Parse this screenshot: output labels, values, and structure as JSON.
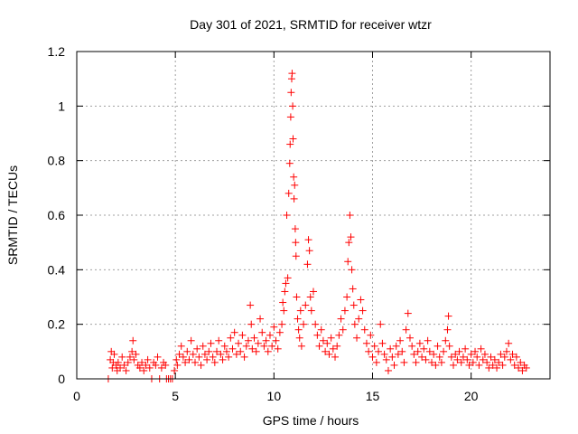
{
  "chart_data": {
    "type": "scatter",
    "title": "Day 301 of 2021, SRMTID for receiver wtzr",
    "xlabel": "GPS time / hours",
    "ylabel": "SRMTID / TECUs",
    "xlim": [
      0,
      24
    ],
    "ylim": [
      0,
      1.2
    ],
    "x_ticks": [
      0,
      5,
      10,
      15,
      20
    ],
    "x_tick_labels": [
      "0",
      "5",
      "10",
      "15",
      "20"
    ],
    "y_ticks": [
      0,
      0.2,
      0.4,
      0.6,
      0.8,
      1.0,
      1.2
    ],
    "y_tick_labels": [
      "0",
      "0.2",
      "0.4",
      "0.6",
      "0.8",
      "1",
      "1.2"
    ],
    "grid": true,
    "marker": "+",
    "marker_color": "#ff0000",
    "series": [
      {
        "name": "SRMTID",
        "points": [
          [
            1.6,
            0.0
          ],
          [
            1.7,
            0.07
          ],
          [
            1.75,
            0.1
          ],
          [
            1.8,
            0.04
          ],
          [
            1.85,
            0.06
          ],
          [
            1.9,
            0.09
          ],
          [
            2.0,
            0.05
          ],
          [
            2.05,
            0.03
          ],
          [
            2.1,
            0.06
          ],
          [
            2.2,
            0.04
          ],
          [
            2.3,
            0.08
          ],
          [
            2.4,
            0.05
          ],
          [
            2.5,
            0.03
          ],
          [
            2.6,
            0.06
          ],
          [
            2.7,
            0.08
          ],
          [
            2.8,
            0.1
          ],
          [
            2.85,
            0.14
          ],
          [
            2.9,
            0.07
          ],
          [
            3.0,
            0.09
          ],
          [
            3.1,
            0.05
          ],
          [
            3.2,
            0.04
          ],
          [
            3.3,
            0.06
          ],
          [
            3.4,
            0.03
          ],
          [
            3.5,
            0.05
          ],
          [
            3.6,
            0.07
          ],
          [
            3.7,
            0.04
          ],
          [
            3.8,
            0.0
          ],
          [
            3.9,
            0.06
          ],
          [
            4.0,
            0.05
          ],
          [
            4.1,
            0.08
          ],
          [
            4.2,
            0.0
          ],
          [
            4.3,
            0.04
          ],
          [
            4.4,
            0.06
          ],
          [
            4.5,
            0.05
          ],
          [
            4.55,
            0.0
          ],
          [
            4.65,
            0.0
          ],
          [
            4.75,
            0.0
          ],
          [
            4.85,
            0.0
          ],
          [
            4.95,
            0.03
          ],
          [
            5.05,
            0.07
          ],
          [
            5.1,
            0.05
          ],
          [
            5.2,
            0.09
          ],
          [
            5.3,
            0.12
          ],
          [
            5.4,
            0.08
          ],
          [
            5.5,
            0.06
          ],
          [
            5.6,
            0.1
          ],
          [
            5.7,
            0.07
          ],
          [
            5.8,
            0.14
          ],
          [
            5.9,
            0.09
          ],
          [
            6.0,
            0.06
          ],
          [
            6.1,
            0.11
          ],
          [
            6.2,
            0.08
          ],
          [
            6.3,
            0.05
          ],
          [
            6.4,
            0.12
          ],
          [
            6.5,
            0.09
          ],
          [
            6.6,
            0.07
          ],
          [
            6.7,
            0.1
          ],
          [
            6.8,
            0.13
          ],
          [
            6.9,
            0.08
          ],
          [
            7.0,
            0.06
          ],
          [
            7.1,
            0.1
          ],
          [
            7.2,
            0.14
          ],
          [
            7.3,
            0.09
          ],
          [
            7.4,
            0.07
          ],
          [
            7.5,
            0.12
          ],
          [
            7.6,
            0.1
          ],
          [
            7.7,
            0.08
          ],
          [
            7.8,
            0.15
          ],
          [
            7.9,
            0.11
          ],
          [
            8.0,
            0.17
          ],
          [
            8.1,
            0.09
          ],
          [
            8.2,
            0.13
          ],
          [
            8.3,
            0.1
          ],
          [
            8.4,
            0.16
          ],
          [
            8.5,
            0.08
          ],
          [
            8.6,
            0.12
          ],
          [
            8.7,
            0.14
          ],
          [
            8.8,
            0.27
          ],
          [
            8.85,
            0.2
          ],
          [
            8.9,
            0.11
          ],
          [
            9.0,
            0.15
          ],
          [
            9.1,
            0.1
          ],
          [
            9.2,
            0.13
          ],
          [
            9.3,
            0.22
          ],
          [
            9.4,
            0.17
          ],
          [
            9.5,
            0.12
          ],
          [
            9.6,
            0.14
          ],
          [
            9.7,
            0.1
          ],
          [
            9.8,
            0.16
          ],
          [
            9.9,
            0.12
          ],
          [
            10.0,
            0.19
          ],
          [
            10.1,
            0.14
          ],
          [
            10.2,
            0.11
          ],
          [
            10.3,
            0.17
          ],
          [
            10.4,
            0.2
          ],
          [
            10.45,
            0.28
          ],
          [
            10.5,
            0.25
          ],
          [
            10.55,
            0.32
          ],
          [
            10.6,
            0.35
          ],
          [
            10.65,
            0.6
          ],
          [
            10.7,
            0.37
          ],
          [
            10.75,
            0.68
          ],
          [
            10.8,
            0.79
          ],
          [
            10.82,
            0.86
          ],
          [
            10.85,
            0.96
          ],
          [
            10.87,
            1.05
          ],
          [
            10.9,
            1.1
          ],
          [
            10.92,
            1.12
          ],
          [
            10.95,
            1.0
          ],
          [
            10.97,
            0.88
          ],
          [
            11.0,
            0.74
          ],
          [
            11.02,
            0.66
          ],
          [
            11.05,
            0.71
          ],
          [
            11.08,
            0.55
          ],
          [
            11.1,
            0.5
          ],
          [
            11.12,
            0.45
          ],
          [
            11.15,
            0.3
          ],
          [
            11.2,
            0.22
          ],
          [
            11.25,
            0.18
          ],
          [
            11.3,
            0.15
          ],
          [
            11.35,
            0.25
          ],
          [
            11.4,
            0.12
          ],
          [
            11.5,
            0.2
          ],
          [
            11.6,
            0.27
          ],
          [
            11.7,
            0.42
          ],
          [
            11.75,
            0.51
          ],
          [
            11.8,
            0.47
          ],
          [
            11.85,
            0.3
          ],
          [
            11.9,
            0.25
          ],
          [
            12.0,
            0.32
          ],
          [
            12.1,
            0.2
          ],
          [
            12.2,
            0.16
          ],
          [
            12.3,
            0.12
          ],
          [
            12.4,
            0.18
          ],
          [
            12.5,
            0.14
          ],
          [
            12.6,
            0.1
          ],
          [
            12.7,
            0.13
          ],
          [
            12.8,
            0.09
          ],
          [
            12.9,
            0.15
          ],
          [
            13.0,
            0.11
          ],
          [
            13.1,
            0.08
          ],
          [
            13.2,
            0.12
          ],
          [
            13.3,
            0.16
          ],
          [
            13.4,
            0.22
          ],
          [
            13.5,
            0.18
          ],
          [
            13.6,
            0.25
          ],
          [
            13.7,
            0.3
          ],
          [
            13.75,
            0.43
          ],
          [
            13.8,
            0.5
          ],
          [
            13.85,
            0.6
          ],
          [
            13.9,
            0.52
          ],
          [
            13.95,
            0.4
          ],
          [
            14.0,
            0.33
          ],
          [
            14.05,
            0.27
          ],
          [
            14.1,
            0.2
          ],
          [
            14.2,
            0.15
          ],
          [
            14.3,
            0.22
          ],
          [
            14.4,
            0.29
          ],
          [
            14.5,
            0.25
          ],
          [
            14.6,
            0.18
          ],
          [
            14.7,
            0.13
          ],
          [
            14.8,
            0.1
          ],
          [
            14.9,
            0.16
          ],
          [
            15.0,
            0.08
          ],
          [
            15.1,
            0.12
          ],
          [
            15.2,
            0.06
          ],
          [
            15.3,
            0.1
          ],
          [
            15.4,
            0.2
          ],
          [
            15.5,
            0.13
          ],
          [
            15.6,
            0.09
          ],
          [
            15.7,
            0.07
          ],
          [
            15.8,
            0.03
          ],
          [
            15.9,
            0.11
          ],
          [
            16.0,
            0.08
          ],
          [
            16.1,
            0.05
          ],
          [
            16.2,
            0.12
          ],
          [
            16.3,
            0.09
          ],
          [
            16.4,
            0.14
          ],
          [
            16.5,
            0.1
          ],
          [
            16.6,
            0.06
          ],
          [
            16.7,
            0.18
          ],
          [
            16.8,
            0.24
          ],
          [
            16.9,
            0.15
          ],
          [
            17.0,
            0.12
          ],
          [
            17.1,
            0.09
          ],
          [
            17.2,
            0.06
          ],
          [
            17.3,
            0.1
          ],
          [
            17.4,
            0.13
          ],
          [
            17.5,
            0.08
          ],
          [
            17.6,
            0.11
          ],
          [
            17.7,
            0.07
          ],
          [
            17.8,
            0.14
          ],
          [
            17.9,
            0.1
          ],
          [
            18.0,
            0.06
          ],
          [
            18.1,
            0.09
          ],
          [
            18.2,
            0.05
          ],
          [
            18.3,
            0.12
          ],
          [
            18.4,
            0.08
          ],
          [
            18.5,
            0.06
          ],
          [
            18.6,
            0.1
          ],
          [
            18.7,
            0.14
          ],
          [
            18.8,
            0.18
          ],
          [
            18.85,
            0.23
          ],
          [
            18.9,
            0.12
          ],
          [
            19.0,
            0.08
          ],
          [
            19.1,
            0.05
          ],
          [
            19.2,
            0.09
          ],
          [
            19.3,
            0.07
          ],
          [
            19.4,
            0.1
          ],
          [
            19.5,
            0.06
          ],
          [
            19.6,
            0.08
          ],
          [
            19.7,
            0.11
          ],
          [
            19.8,
            0.07
          ],
          [
            19.9,
            0.05
          ],
          [
            20.0,
            0.09
          ],
          [
            20.1,
            0.06
          ],
          [
            20.2,
            0.1
          ],
          [
            20.3,
            0.08
          ],
          [
            20.4,
            0.05
          ],
          [
            20.5,
            0.11
          ],
          [
            20.6,
            0.07
          ],
          [
            20.7,
            0.09
          ],
          [
            20.8,
            0.06
          ],
          [
            20.9,
            0.04
          ],
          [
            21.0,
            0.08
          ],
          [
            21.1,
            0.05
          ],
          [
            21.2,
            0.07
          ],
          [
            21.3,
            0.04
          ],
          [
            21.4,
            0.06
          ],
          [
            21.5,
            0.09
          ],
          [
            21.6,
            0.05
          ],
          [
            21.7,
            0.08
          ],
          [
            21.8,
            0.1
          ],
          [
            21.9,
            0.13
          ],
          [
            22.0,
            0.07
          ],
          [
            22.1,
            0.09
          ],
          [
            22.2,
            0.05
          ],
          [
            22.3,
            0.08
          ],
          [
            22.4,
            0.04
          ],
          [
            22.5,
            0.06
          ],
          [
            22.6,
            0.03
          ],
          [
            22.7,
            0.05
          ],
          [
            22.8,
            0.04
          ]
        ]
      }
    ]
  }
}
